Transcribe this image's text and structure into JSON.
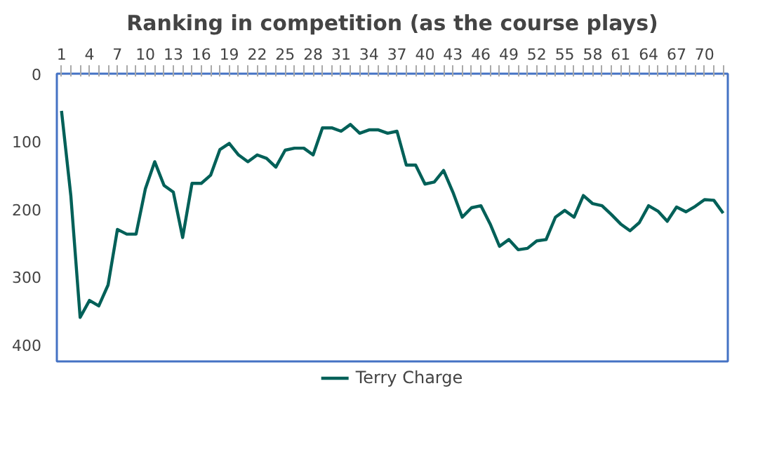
{
  "chart_data": {
    "type": "line",
    "title": "Ranking in competition (as the course plays)",
    "categories": [
      "1",
      null,
      null,
      "4",
      null,
      null,
      "7",
      null,
      null,
      "10",
      null,
      null,
      "13",
      null,
      null,
      "16",
      null,
      null,
      "19",
      null,
      null,
      "22",
      null,
      null,
      "25",
      null,
      null,
      "28",
      null,
      null,
      "31",
      null,
      null,
      "34",
      null,
      null,
      "37",
      null,
      null,
      "40",
      null,
      null,
      "43",
      null,
      null,
      "46",
      null,
      null,
      "49",
      null,
      null,
      "52",
      null,
      null,
      "55",
      null,
      null,
      "58",
      null,
      null,
      "61",
      null,
      null,
      "64",
      null,
      null,
      "67",
      null,
      null,
      "70",
      null,
      null
    ],
    "series": [
      {
        "name": "Terry Charge",
        "color": "#006058",
        "values": [
          55,
          180,
          360,
          335,
          343,
          312,
          230,
          237,
          237,
          170,
          130,
          165,
          175,
          242,
          162,
          162,
          150,
          112,
          103,
          120,
          130,
          120,
          125,
          138,
          113,
          110,
          110,
          120,
          80,
          80,
          85,
          75,
          88,
          83,
          83,
          88,
          85,
          135,
          135,
          163,
          160,
          143,
          175,
          212,
          198,
          195,
          222,
          255,
          245,
          260,
          258,
          247,
          245,
          212,
          202,
          212,
          180,
          192,
          195,
          208,
          222,
          232,
          220,
          195,
          203,
          218,
          197,
          204,
          196,
          186,
          187,
          206
        ]
      }
    ],
    "ylim": [
      425,
      0
    ],
    "yticks": [
      0,
      100,
      200,
      300,
      400
    ],
    "legend": "bottom",
    "line_style": "solid"
  }
}
